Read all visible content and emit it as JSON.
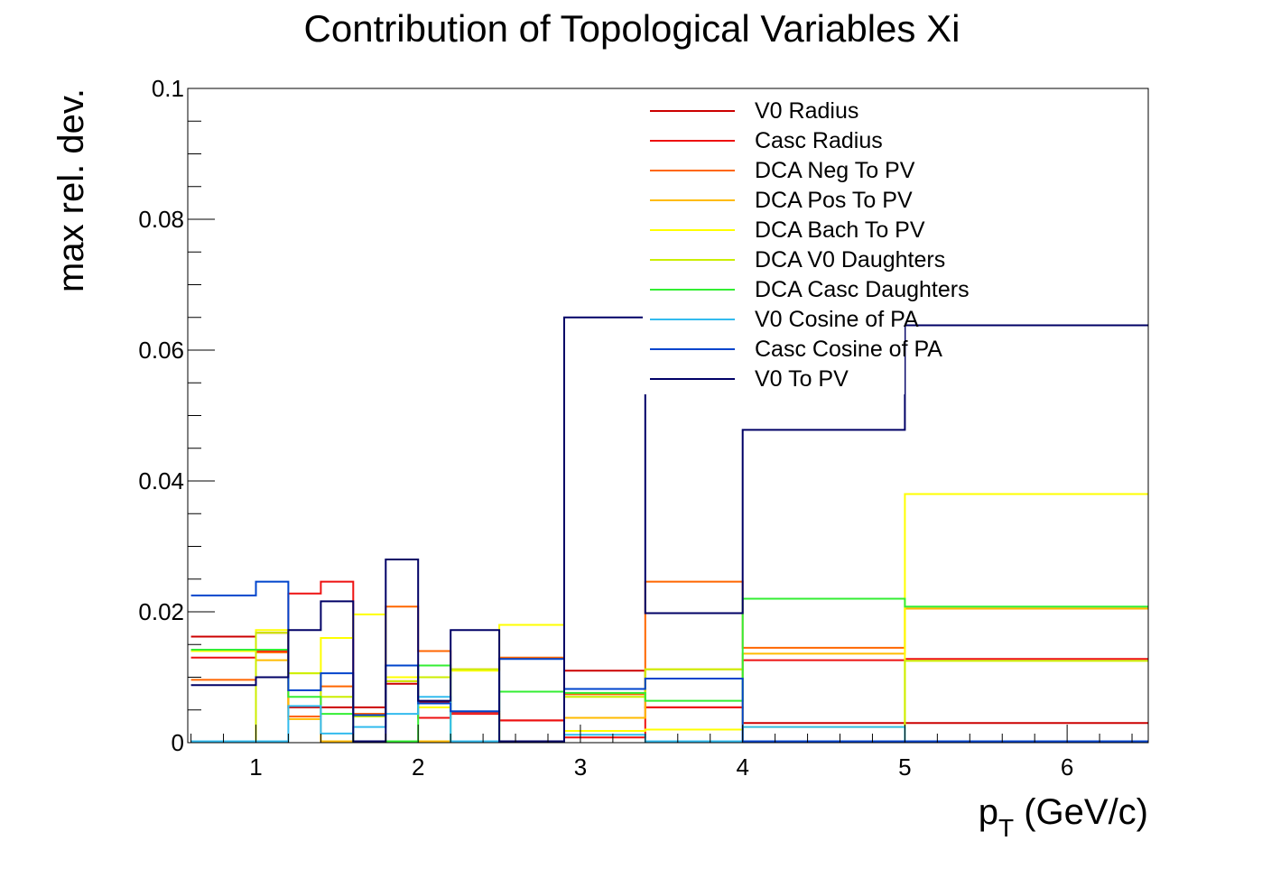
{
  "chart_data": {
    "type": "line",
    "title": "Contribution of Topological Variables Xi",
    "xlabel_main": "p",
    "xlabel_sub": "T",
    "xlabel_rest": " (GeV/c)",
    "ylabel": "max rel. dev.",
    "xlim": [
      0.58,
      6.5
    ],
    "ylim": [
      0,
      0.1
    ],
    "x_ticks": [
      "1",
      "2",
      "3",
      "4",
      "5",
      "6"
    ],
    "y_ticks": [
      "0",
      "0.02",
      "0.04",
      "0.06",
      "0.08",
      "0.1"
    ],
    "legend_position": "top-right",
    "bin_edges": [
      0.6,
      1.0,
      1.2,
      1.4,
      1.6,
      1.8,
      2.0,
      2.2,
      2.5,
      2.9,
      3.4,
      4.0,
      5.0,
      6.5
    ],
    "series": [
      {
        "name": "V0 Radius",
        "color": "#cc0000",
        "values": [
          0.0162,
          0.0168,
          0.0054,
          0.0054,
          0.0054,
          0.009,
          0.0062,
          0.0047,
          0.0034,
          0.011,
          0.0054,
          0.003,
          0.003
        ]
      },
      {
        "name": "Casc Radius",
        "color": "#ee1111",
        "values": [
          0.013,
          0.014,
          0.0228,
          0.0246,
          0.0044,
          0.0094,
          0.0038,
          0.0044,
          0.0034,
          0.0008,
          0.0054,
          0.0126,
          0.0128
        ]
      },
      {
        "name": "DCA Neg To PV",
        "color": "#ff6600",
        "values": [
          0.0096,
          0.0138,
          0.004,
          0.0086,
          0.0044,
          0.0208,
          0.014,
          0.0112,
          0.013,
          0.0074,
          0.0246,
          0.0145,
          0.0205
        ]
      },
      {
        "name": "DCA Pos To PV",
        "color": "#ffbb00",
        "values": [
          0.014,
          0.0126,
          0.0036,
          0.0002,
          0.0002,
          0.0002,
          0.0002,
          0.0002,
          0.0002,
          0.0038,
          0.0112,
          0.0136,
          0.0205
        ]
      },
      {
        "name": "DCA Bach To PV",
        "color": "#ffff00",
        "values": [
          0.014,
          0.0172,
          0.0106,
          0.016,
          0.0196,
          0.01,
          0.0054,
          0.011,
          0.018,
          0.0018,
          0.002,
          0.0024,
          0.038
        ]
      },
      {
        "name": "DCA V0 Daughters",
        "color": "#ccee00",
        "values": [
          0.0002,
          0.0168,
          0.0106,
          0.007,
          0.004,
          0.0094,
          0.01,
          0.0112,
          0.0002,
          0.007,
          0.0112,
          0.0002,
          0.0125
        ]
      },
      {
        "name": "DCA Casc Daughters",
        "color": "#33ee33",
        "values": [
          0.0142,
          0.0142,
          0.007,
          0.0044,
          0.0002,
          0.0002,
          0.0118,
          0.0002,
          0.0078,
          0.0076,
          0.0064,
          0.022,
          0.0208
        ]
      },
      {
        "name": "V0 Cosine of PA",
        "color": "#33bbee",
        "values": [
          0.0002,
          0.0002,
          0.0056,
          0.0014,
          0.0024,
          0.0044,
          0.007,
          0.0002,
          0.0002,
          0.0012,
          0.0002,
          0.0024,
          0.0002
        ]
      },
      {
        "name": "Casc Cosine of PA",
        "color": "#0044cc",
        "values": [
          0.0225,
          0.0246,
          0.008,
          0.0106,
          0.0042,
          0.0118,
          0.006,
          0.0048,
          0.0128,
          0.0082,
          0.0098,
          0.0002,
          0.0002
        ]
      },
      {
        "name": "V0 To PV",
        "color": "#000066",
        "values": [
          0.0088,
          0.01,
          0.0172,
          0.0216,
          0.0002,
          0.028,
          0.0064,
          0.0172,
          0.0002,
          0.065,
          0.0198,
          0.0478,
          0.0638
        ]
      }
    ]
  }
}
